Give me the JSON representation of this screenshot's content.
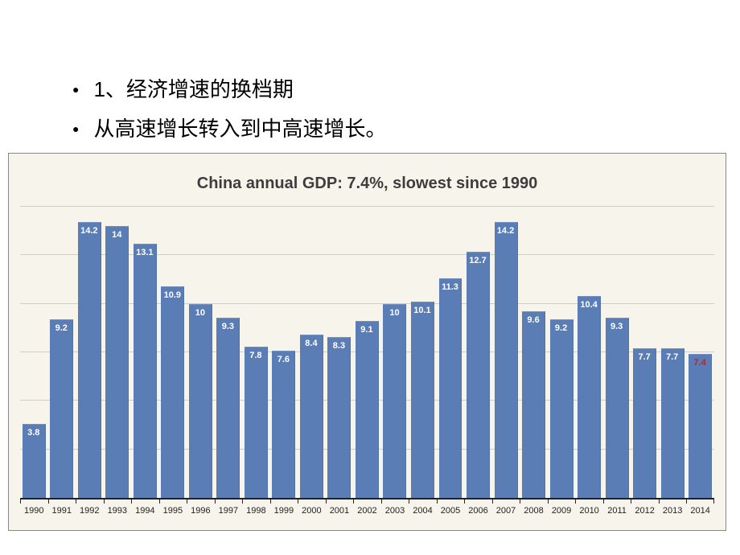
{
  "bullets": [
    "1、经济增速的换档期",
    "从高速增长转入到中高速增长。"
  ],
  "chart": {
    "type": "bar",
    "title": "China annual GDP: 7.4%, slowest since 1990",
    "title_fontsize": 20,
    "title_color": "#3d3d3d",
    "background_color": "#f7f4eb",
    "bar_color": "#5b7db5",
    "highlight_label_color": "#c3211c",
    "normal_label_color": "#ffffff",
    "grid_color": "#d0cdc3",
    "axis_color": "#222222",
    "x_label_fontsize": 11,
    "bar_label_fontsize": 11,
    "ylim": [
      0,
      15
    ],
    "gridline_y_positions": [
      2.5,
      5,
      7.5,
      10,
      12.5,
      15
    ],
    "bar_width_ratio": 0.84,
    "categories": [
      "1990",
      "1991",
      "1992",
      "1993",
      "1994",
      "1995",
      "1996",
      "1997",
      "1998",
      "1999",
      "2000",
      "2001",
      "2002",
      "2003",
      "2004",
      "2005",
      "2006",
      "2007",
      "2008",
      "2009",
      "2010",
      "2011",
      "2012",
      "2013",
      "2014"
    ],
    "values": [
      3.8,
      9.2,
      14.2,
      14,
      13.1,
      10.9,
      10,
      9.3,
      7.8,
      7.6,
      8.4,
      8.3,
      9.1,
      10,
      10.1,
      11.3,
      12.7,
      14.2,
      9.6,
      9.2,
      10.4,
      9.3,
      7.7,
      7.7,
      7.4
    ],
    "value_labels": [
      "3.8",
      "9.2",
      "14.2",
      "14",
      "13.1",
      "10.9",
      "10",
      "9.3",
      "7.8",
      "7.6",
      "8.4",
      "8.3",
      "9.1",
      "10",
      "10.1",
      "11.3",
      "12.7",
      "14.2",
      "9.6",
      "9.2",
      "10.4",
      "9.3",
      "7.7",
      "7.7",
      "7.4"
    ],
    "highlight_index": 24
  }
}
